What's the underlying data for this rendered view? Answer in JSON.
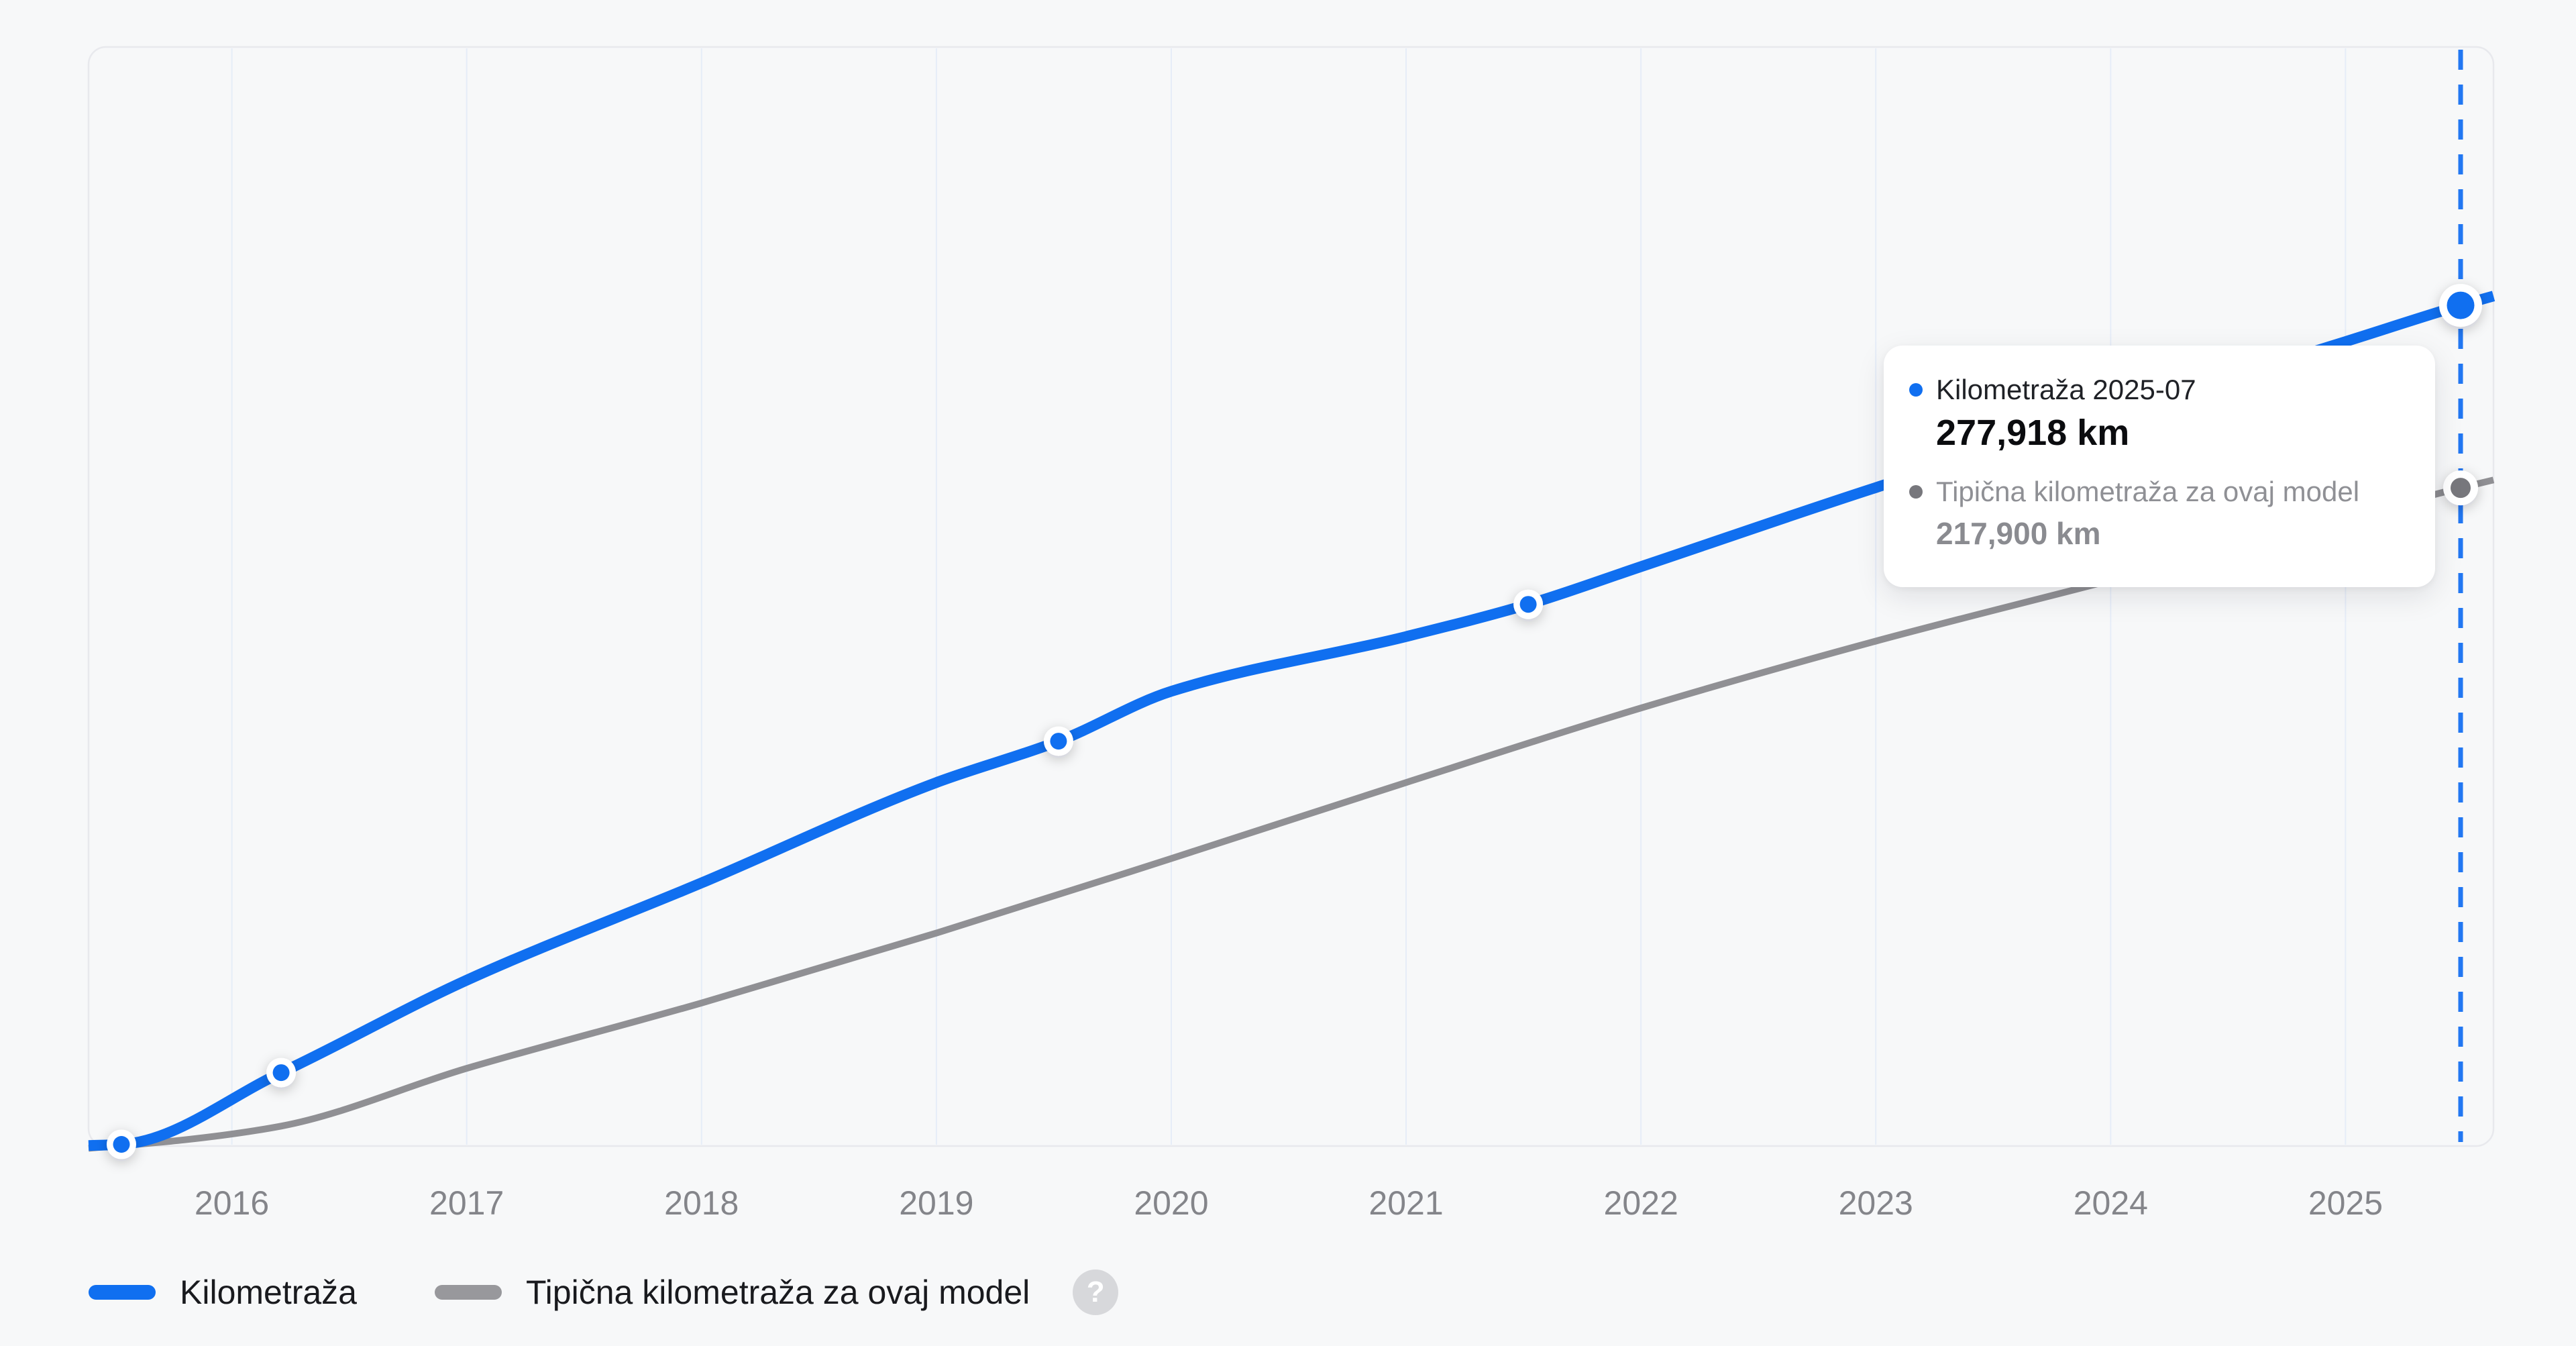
{
  "chart_data": {
    "type": "line",
    "x_axis": {
      "ticks": [
        "2016",
        "2017",
        "2018",
        "2019",
        "2020",
        "2021",
        "2022",
        "2023",
        "2024",
        "2025"
      ],
      "range": [
        2015.39,
        2025.63
      ]
    },
    "y_axis": {
      "unit": "km",
      "range": [
        0,
        362900
      ],
      "labels_visible": false
    },
    "grid": {
      "vertical": true,
      "horizontal": false
    },
    "colors": {
      "background": "#f7f8f9",
      "plot_border": "#e8e9ed",
      "gridline": "#e6edf8",
      "dashed_line": "#2277f2"
    },
    "series": [
      {
        "name": "Kilometraža",
        "color": "#106ff0",
        "stroke_width": 16,
        "points": [
          [
            2015.39,
            1600
          ],
          [
            2015.53,
            2000
          ],
          [
            2016.21,
            25600
          ],
          [
            2017,
            56000
          ],
          [
            2018,
            88000
          ],
          [
            2019,
            121000
          ],
          [
            2019.52,
            134600
          ],
          [
            2020,
            151000
          ],
          [
            2021,
            169000
          ],
          [
            2021.52,
            179600
          ],
          [
            2022,
            192000
          ],
          [
            2023,
            218000
          ],
          [
            2024,
            242000
          ],
          [
            2025,
            266000
          ],
          [
            2025.49,
            277918
          ],
          [
            2025.63,
            281000
          ]
        ],
        "marker_x": [
          2015.53,
          2016.21,
          2019.52,
          2021.52
        ]
      },
      {
        "name": "Tipična kilometraža za ovaj model",
        "color": "#909094",
        "stroke_width": 10,
        "points": [
          [
            2015.39,
            700
          ],
          [
            2015.8,
            3500
          ],
          [
            2016.21,
            8000
          ],
          [
            2017,
            27000
          ],
          [
            2018,
            48500
          ],
          [
            2019,
            71500
          ],
          [
            2020,
            96000
          ],
          [
            2021,
            121000
          ],
          [
            2022,
            145500
          ],
          [
            2023,
            167500
          ],
          [
            2024,
            187500
          ],
          [
            2025,
            208000
          ],
          [
            2025.49,
            217900
          ],
          [
            2025.63,
            220500
          ]
        ],
        "marker_x": []
      }
    ],
    "highlight": {
      "x": 2025.49,
      "date": "2025-07",
      "series_values": [
        277918,
        217900
      ],
      "secondary_marker_color": "#77777c"
    }
  },
  "tooltip": {
    "title": "Kilometraža 2025-07",
    "value": "277,918 km",
    "secondary_label": "Tipična kilometraža za ovaj model",
    "secondary_value": "217,900 km"
  },
  "legend": {
    "items": [
      {
        "label": "Kilometraža",
        "color": "#106ff0"
      },
      {
        "label": "Tipična kilometraža za ovaj model",
        "color": "#98989c"
      }
    ],
    "help_label": "?"
  }
}
